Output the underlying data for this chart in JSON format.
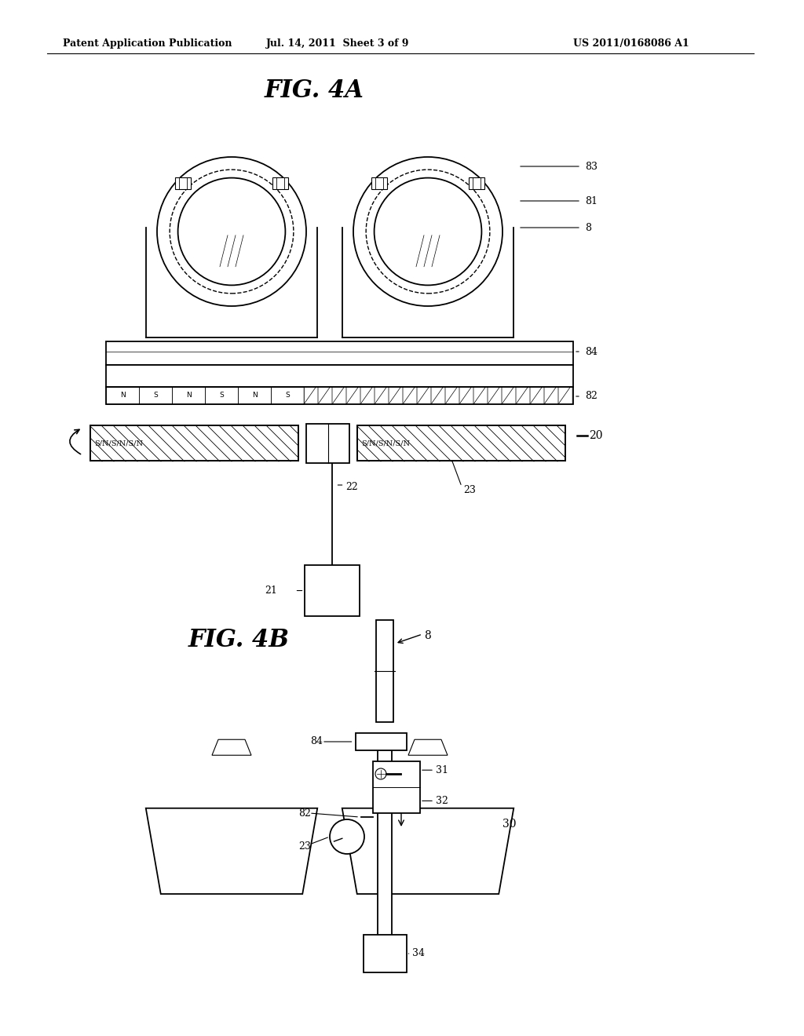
{
  "bg_color": "#ffffff",
  "header_left": "Patent Application Publication",
  "header_mid": "Jul. 14, 2011  Sheet 3 of 9",
  "header_right": "US 2011/0168086 A1",
  "fig4a_label": "FIG. 4A",
  "fig4b_label": "FIG. 4B"
}
